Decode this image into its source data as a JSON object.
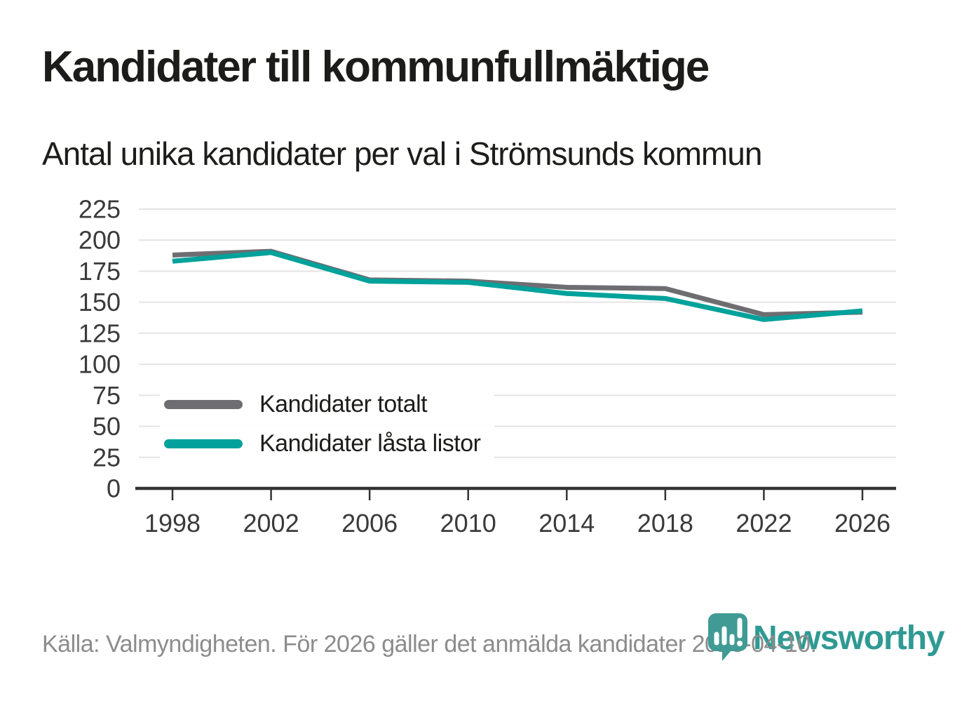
{
  "chart_data": {
    "type": "line",
    "title": "Kandidater till kommunfullmäktige",
    "subtitle": "Antal unika kandidater per val i Strömsunds kommun",
    "categories": [
      1998,
      2002,
      2006,
      2010,
      2014,
      2018,
      2022,
      2026
    ],
    "series": [
      {
        "name": "Kandidater totalt",
        "color": "#6d6d72",
        "values": [
          188,
          191,
          168,
          167,
          162,
          161,
          140,
          142
        ]
      },
      {
        "name": "Kandidater låsta listor",
        "color": "#00a29b",
        "values": [
          183,
          190,
          167,
          166,
          157,
          153,
          136,
          143
        ]
      }
    ],
    "ylim": [
      0,
      225
    ],
    "ytick_step": 25,
    "xlabel": "",
    "ylabel": "",
    "grid": "horizontal",
    "legend_position": "inside-bottom-left"
  },
  "footer": {
    "source_text": "Källa: Valmyndigheten. För 2026 gäller det anmälda kandidater 2026-04-10."
  },
  "logo": {
    "wordmark": "Newsworthy",
    "icon": "newsworthy-pin-bar-chart-icon",
    "wordmark_color": "#2f9a93",
    "icon_color": "#3f9b94"
  },
  "colors": {
    "background": "#ffffff",
    "title": "#1c1c1a",
    "subtitle": "#1d1d1b",
    "axis_line": "#333333",
    "tick_label": "#3a3a3a",
    "gridline": "#e4e4e4",
    "source_text": "#8c8c8c"
  }
}
